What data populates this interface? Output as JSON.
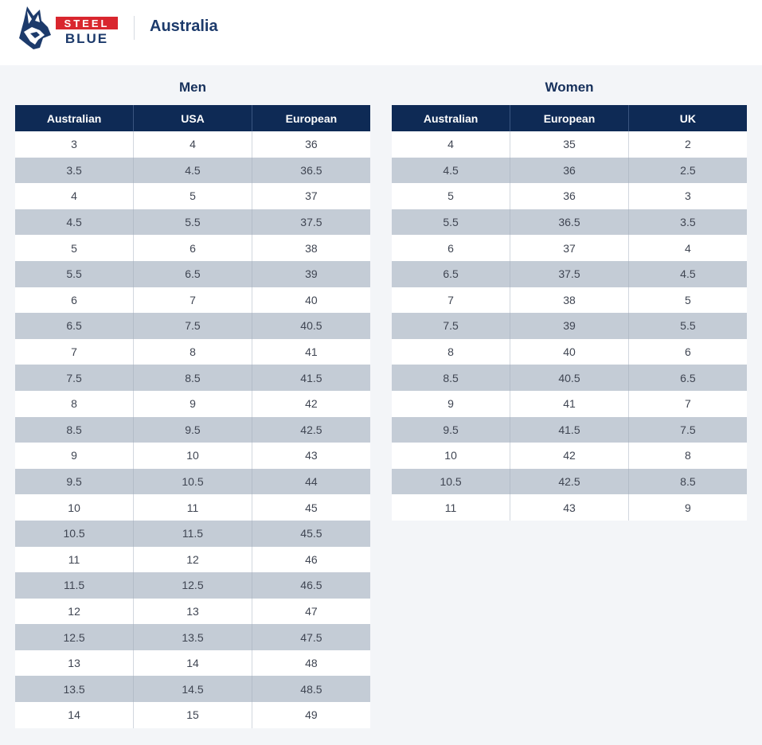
{
  "header": {
    "logo_top": "STEEL",
    "logo_bottom": "BLUE",
    "region": "Australia"
  },
  "colors": {
    "brand_navy": "#0e2a55",
    "brand_red": "#d9262e",
    "row_shade": "#c4ccd6"
  },
  "men": {
    "title": "Men",
    "columns": [
      "Australian",
      "USA",
      "European"
    ],
    "rows": [
      [
        "3",
        "4",
        "36"
      ],
      [
        "3.5",
        "4.5",
        "36.5"
      ],
      [
        "4",
        "5",
        "37"
      ],
      [
        "4.5",
        "5.5",
        "37.5"
      ],
      [
        "5",
        "6",
        "38"
      ],
      [
        "5.5",
        "6.5",
        "39"
      ],
      [
        "6",
        "7",
        "40"
      ],
      [
        "6.5",
        "7.5",
        "40.5"
      ],
      [
        "7",
        "8",
        "41"
      ],
      [
        "7.5",
        "8.5",
        "41.5"
      ],
      [
        "8",
        "9",
        "42"
      ],
      [
        "8.5",
        "9.5",
        "42.5"
      ],
      [
        "9",
        "10",
        "43"
      ],
      [
        "9.5",
        "10.5",
        "44"
      ],
      [
        "10",
        "11",
        "45"
      ],
      [
        "10.5",
        "11.5",
        "45.5"
      ],
      [
        "11",
        "12",
        "46"
      ],
      [
        "11.5",
        "12.5",
        "46.5"
      ],
      [
        "12",
        "13",
        "47"
      ],
      [
        "12.5",
        "13.5",
        "47.5"
      ],
      [
        "13",
        "14",
        "48"
      ],
      [
        "13.5",
        "14.5",
        "48.5"
      ],
      [
        "14",
        "15",
        "49"
      ]
    ]
  },
  "women": {
    "title": "Women",
    "columns": [
      "Australian",
      "European",
      "UK"
    ],
    "rows": [
      [
        "4",
        "35",
        "2"
      ],
      [
        "4.5",
        "36",
        "2.5"
      ],
      [
        "5",
        "36",
        "3"
      ],
      [
        "5.5",
        "36.5",
        "3.5"
      ],
      [
        "6",
        "37",
        "4"
      ],
      [
        "6.5",
        "37.5",
        "4.5"
      ],
      [
        "7",
        "38",
        "5"
      ],
      [
        "7.5",
        "39",
        "5.5"
      ],
      [
        "8",
        "40",
        "6"
      ],
      [
        "8.5",
        "40.5",
        "6.5"
      ],
      [
        "9",
        "41",
        "7"
      ],
      [
        "9.5",
        "41.5",
        "7.5"
      ],
      [
        "10",
        "42",
        "8"
      ],
      [
        "10.5",
        "42.5",
        "8.5"
      ],
      [
        "11",
        "43",
        "9"
      ]
    ]
  }
}
